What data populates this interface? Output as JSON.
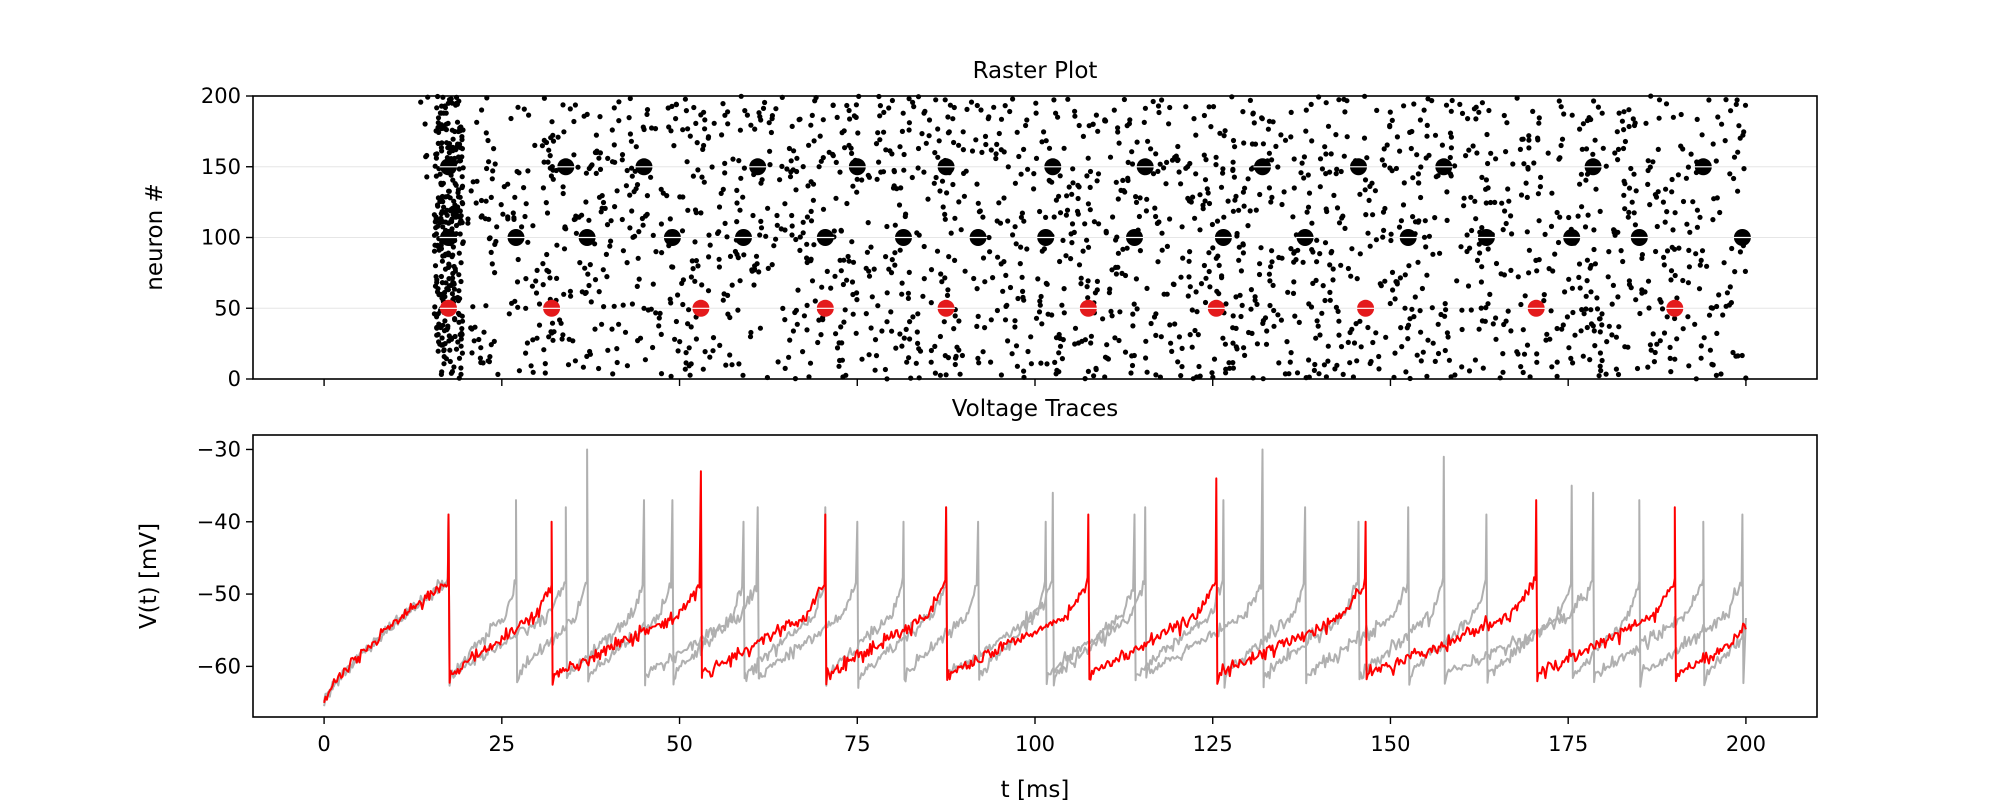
{
  "chart_data": [
    {
      "type": "scatter",
      "title": "Raster Plot",
      "xlabel": "",
      "ylabel": "neuron #",
      "xlim": [
        -10,
        210
      ],
      "ylim": [
        0,
        200
      ],
      "xticks": [
        0,
        25,
        50,
        75,
        100,
        125,
        150,
        175,
        200
      ],
      "yticks": [
        0,
        50,
        100,
        150,
        200
      ],
      "grid": "horizontal",
      "x_tick_labels_shown": false,
      "background_spikes": {
        "name": "",
        "color": "#000000",
        "description_x_range": [
          14,
          200
        ],
        "dense_band_x_range": [
          15.5,
          19.5
        ]
      },
      "series": [
        {
          "name": "",
          "color": "#e41a1c",
          "y": 50,
          "x": [
            17.5,
            32.0,
            53.0,
            70.5,
            87.5,
            107.5,
            125.5,
            146.5,
            170.5,
            190.0
          ]
        },
        {
          "name": "",
          "color": "#000000",
          "y": 100,
          "x": [
            17.5,
            27.0,
            37.0,
            49.0,
            59.0,
            70.5,
            81.5,
            92.0,
            101.5,
            114.0,
            126.5,
            138.0,
            152.5,
            163.5,
            175.5,
            185.0,
            199.5
          ]
        },
        {
          "name": "",
          "color": "#000000",
          "y": 150,
          "x": [
            17.5,
            34.0,
            45.0,
            61.0,
            75.0,
            87.5,
            102.5,
            115.5,
            132.0,
            145.5,
            157.5,
            178.5,
            194.0
          ]
        }
      ]
    },
    {
      "type": "line",
      "title": "Voltage Traces",
      "xlabel": "t [ms]",
      "ylabel": "V(t) [mV]",
      "xlim": [
        -10,
        210
      ],
      "ylim": [
        -67,
        -28
      ],
      "xticks": [
        0,
        25,
        50,
        75,
        100,
        125,
        150,
        175,
        200
      ],
      "xtick_labels": [
        "0",
        "25",
        "50",
        "75",
        "100",
        "125",
        "150",
        "175",
        "200"
      ],
      "yticks": [
        -60,
        -50,
        -40,
        -30
      ],
      "ytick_labels": [
        "−60",
        "−50",
        "−40",
        "−30"
      ],
      "grid": "none",
      "series": [
        {
          "name": "",
          "color": "#ff0000",
          "rest": -60,
          "start": -65,
          "spikes": [
            [
              17.5,
              -39
            ],
            [
              32.0,
              -40
            ],
            [
              53.0,
              -33
            ],
            [
              70.5,
              -39
            ],
            [
              87.5,
              -38
            ],
            [
              107.5,
              -39
            ],
            [
              125.5,
              -34
            ],
            [
              146.5,
              -40
            ],
            [
              170.5,
              -37
            ],
            [
              190.0,
              -38
            ]
          ]
        },
        {
          "name": "",
          "color": "#b0b0b0",
          "rest": -60,
          "start": -65,
          "spikes": [
            [
              17.5,
              -39
            ],
            [
              27.0,
              -37
            ],
            [
              37.0,
              -30
            ],
            [
              49.0,
              -37
            ],
            [
              59.0,
              -40
            ],
            [
              70.5,
              -38
            ],
            [
              81.5,
              -40
            ],
            [
              92.0,
              -40
            ],
            [
              101.5,
              -40
            ],
            [
              114.0,
              -39
            ],
            [
              126.5,
              -37
            ],
            [
              138.0,
              -38
            ],
            [
              152.5,
              -38
            ],
            [
              163.5,
              -39
            ],
            [
              175.5,
              -35
            ],
            [
              185.0,
              -37
            ],
            [
              199.5,
              -39
            ]
          ]
        },
        {
          "name": "",
          "color": "#b0b0b0",
          "rest": -60,
          "start": -65,
          "spikes": [
            [
              17.5,
              -39
            ],
            [
              34.0,
              -38
            ],
            [
              45.0,
              -37
            ],
            [
              61.0,
              -38
            ],
            [
              75.0,
              -40
            ],
            [
              87.5,
              -38
            ],
            [
              102.5,
              -36
            ],
            [
              115.5,
              -38
            ],
            [
              132.0,
              -30
            ],
            [
              145.5,
              -40
            ],
            [
              157.5,
              -31
            ],
            [
              178.5,
              -36
            ],
            [
              194.0,
              -40
            ]
          ]
        }
      ]
    }
  ]
}
